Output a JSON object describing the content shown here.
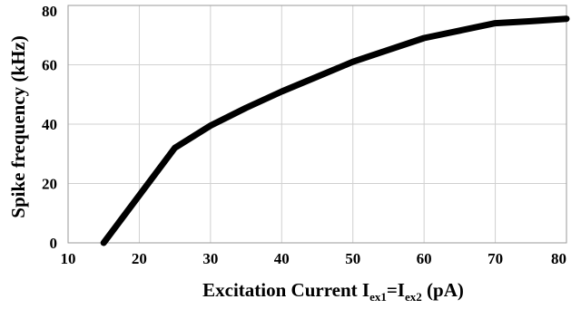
{
  "chart_data": {
    "type": "line",
    "title": "",
    "xlabel": {
      "base": "Excitation Current I",
      "sub1": "ex1",
      "mid": "=I",
      "sub2": "ex2",
      "tail": " (pA)"
    },
    "ylabel": "Spike frequency (kHz)",
    "xlim": [
      10,
      80
    ],
    "ylim": [
      0,
      80
    ],
    "xticks": [
      10,
      20,
      30,
      40,
      50,
      60,
      70,
      80
    ],
    "yticks": [
      0,
      20,
      40,
      60,
      80
    ],
    "grid": true,
    "series": [
      {
        "color": "#000000",
        "x": [
          15,
          25,
          30,
          35,
          40,
          45,
          50,
          55,
          60,
          65,
          70,
          75,
          80
        ],
        "y": [
          0,
          32,
          39.5,
          45.5,
          51,
          56,
          61,
          65,
          69,
          71.5,
          74,
          74.7,
          75.5
        ]
      }
    ]
  }
}
